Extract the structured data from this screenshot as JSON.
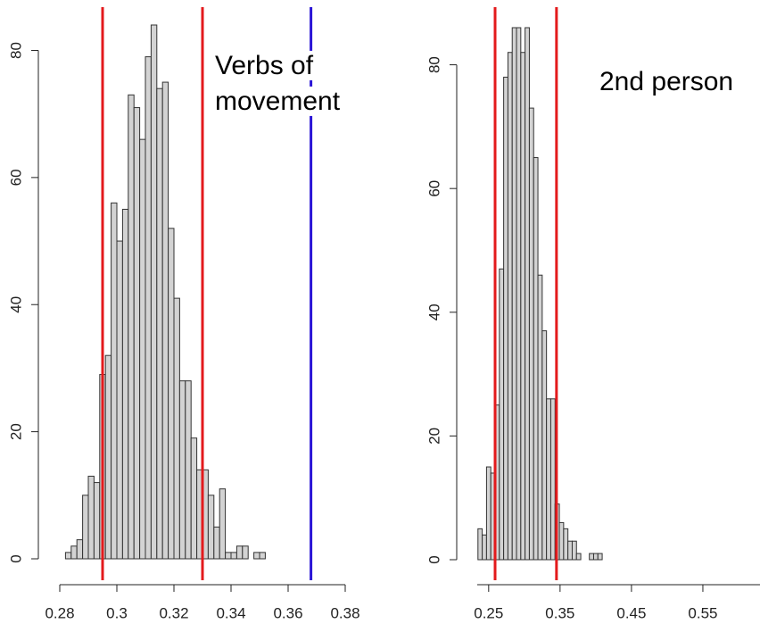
{
  "chart_data": [
    {
      "type": "histogram",
      "annotation": [
        "Verbs of",
        "movement"
      ],
      "bins": [
        0.282,
        0.284,
        0.286,
        0.288,
        0.29,
        0.292,
        0.294,
        0.296,
        0.298,
        0.3,
        0.302,
        0.304,
        0.306,
        0.308,
        0.31,
        0.312,
        0.314,
        0.316,
        0.318,
        0.32,
        0.322,
        0.324,
        0.326,
        0.328,
        0.33,
        0.332,
        0.334,
        0.336,
        0.338,
        0.34,
        0.342,
        0.344,
        0.346,
        0.348,
        0.35,
        0.352
      ],
      "values": [
        1,
        2,
        3,
        10,
        13,
        12,
        29,
        32,
        56,
        50,
        55,
        73,
        71,
        66,
        79,
        84,
        74,
        75,
        52,
        41,
        28,
        28,
        19,
        14,
        14,
        10,
        5,
        11,
        1,
        1,
        2,
        2,
        0,
        1,
        1
      ],
      "color": "#d3d3d3",
      "xlim": [
        0.28,
        0.38
      ],
      "xticks": [
        0.28,
        0.3,
        0.32,
        0.34,
        0.36,
        0.38
      ],
      "ylim": [
        0,
        84
      ],
      "yticks": [
        0,
        20,
        40,
        60,
        80
      ],
      "vlines": [
        {
          "value": 0.295,
          "color": "#e31a1c"
        },
        {
          "value": 0.33,
          "color": "#e31a1c"
        },
        {
          "value": 0.368,
          "color": "#2a14d6"
        }
      ]
    },
    {
      "type": "histogram",
      "annotation": [
        "2nd person"
      ],
      "bins": [
        0.235,
        0.241,
        0.247,
        0.253,
        0.259,
        0.265,
        0.271,
        0.277,
        0.283,
        0.289,
        0.295,
        0.301,
        0.307,
        0.313,
        0.319,
        0.325,
        0.331,
        0.337,
        0.343,
        0.349,
        0.355,
        0.361,
        0.367,
        0.373,
        0.379,
        0.385,
        0.391,
        0.397,
        0.403,
        0.409,
        0.415
      ],
      "values": [
        5,
        4,
        15,
        14,
        25,
        47,
        78,
        82,
        86,
        86,
        82,
        86,
        73,
        65,
        46,
        37,
        26,
        26,
        9,
        6,
        5,
        3,
        3,
        1,
        0,
        0,
        1,
        1,
        1,
        0
      ],
      "color": "#d3d3d3",
      "xlim": [
        0.234,
        0.63
      ],
      "xticks": [
        0.25,
        0.35,
        0.45,
        0.55
      ],
      "ylim": [
        0,
        86
      ],
      "yticks": [
        0,
        20,
        40,
        60,
        80
      ],
      "vlines": [
        {
          "value": 0.259,
          "color": "#e31a1c"
        },
        {
          "value": 0.345,
          "color": "#e31a1c"
        }
      ]
    }
  ]
}
